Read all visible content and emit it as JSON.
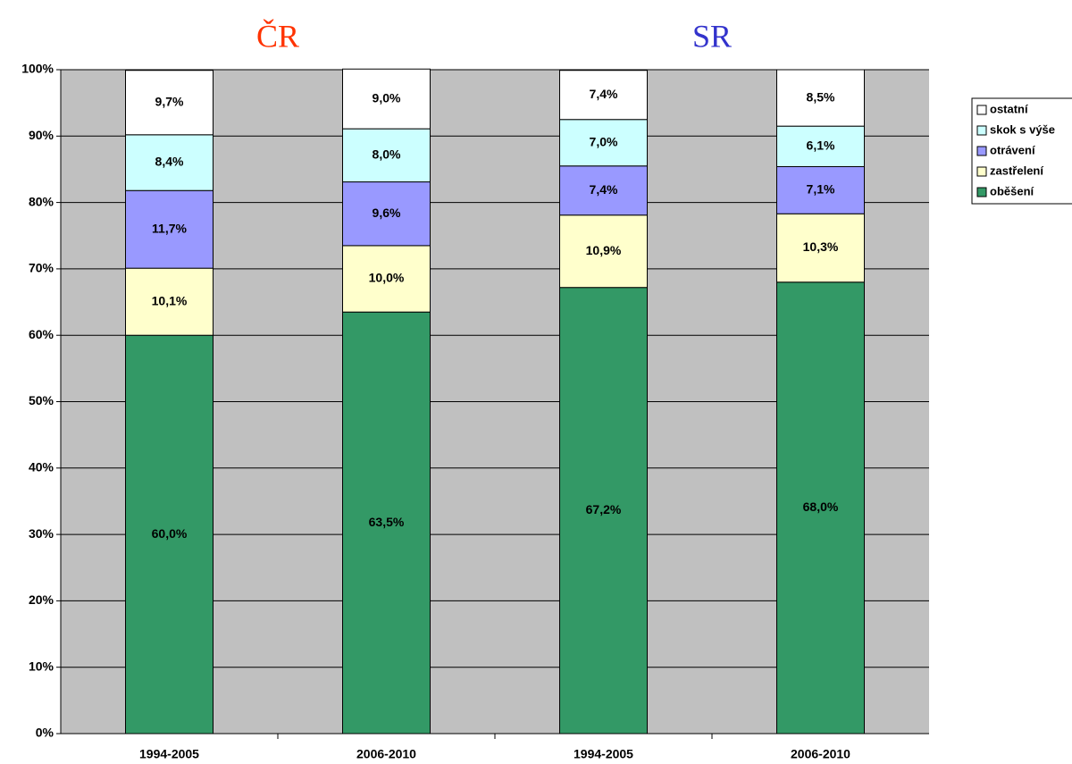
{
  "chart_data": {
    "type": "stacked_bar",
    "annotations": [
      {
        "text": "ČR",
        "color": "#ff3300"
      },
      {
        "text": "SR",
        "color": "#3333cc"
      }
    ],
    "categories": [
      "1994-2005",
      "2006-2010",
      "1994-2005",
      "2006-2010"
    ],
    "series": [
      {
        "name": "oběšení",
        "color": "#339966",
        "values": [
          60.0,
          63.5,
          67.2,
          68.0
        ],
        "value_labels": [
          "60,0%",
          "63,5%",
          "67,2%",
          "68,0%"
        ]
      },
      {
        "name": "zastřelení",
        "color": "#ffffcc",
        "values": [
          10.1,
          10.0,
          10.9,
          10.3
        ],
        "value_labels": [
          "10,1%",
          "10,0%",
          "10,9%",
          "10,3%"
        ]
      },
      {
        "name": "otrávení",
        "color": "#9999ff",
        "values": [
          11.7,
          9.6,
          7.4,
          7.1
        ],
        "value_labels": [
          "11,7%",
          "9,6%",
          "7,4%",
          "7,1%"
        ]
      },
      {
        "name": "skok s výše",
        "color": "#ccffff",
        "values": [
          8.4,
          8.0,
          7.0,
          6.1
        ],
        "value_labels": [
          "8,4%",
          "8,0%",
          "7,0%",
          "6,1%"
        ]
      },
      {
        "name": "ostatní",
        "color": "#ffffff",
        "values": [
          9.7,
          9.0,
          7.4,
          8.5
        ],
        "value_labels": [
          "9,7%",
          "9,0%",
          "7,4%",
          "8,5%"
        ]
      }
    ],
    "ylim": [
      0,
      100
    ],
    "yticks": [
      {
        "value": 0,
        "label": "0%"
      },
      {
        "value": 10,
        "label": "10%"
      },
      {
        "value": 20,
        "label": "20%"
      },
      {
        "value": 30,
        "label": "30%"
      },
      {
        "value": 40,
        "label": "40%"
      },
      {
        "value": 50,
        "label": "50%"
      },
      {
        "value": 60,
        "label": "60%"
      },
      {
        "value": 70,
        "label": "70%"
      },
      {
        "value": 80,
        "label": "80%"
      },
      {
        "value": 90,
        "label": "90%"
      },
      {
        "value": 100,
        "label": "100%"
      }
    ],
    "grid": true,
    "legend": "right"
  }
}
